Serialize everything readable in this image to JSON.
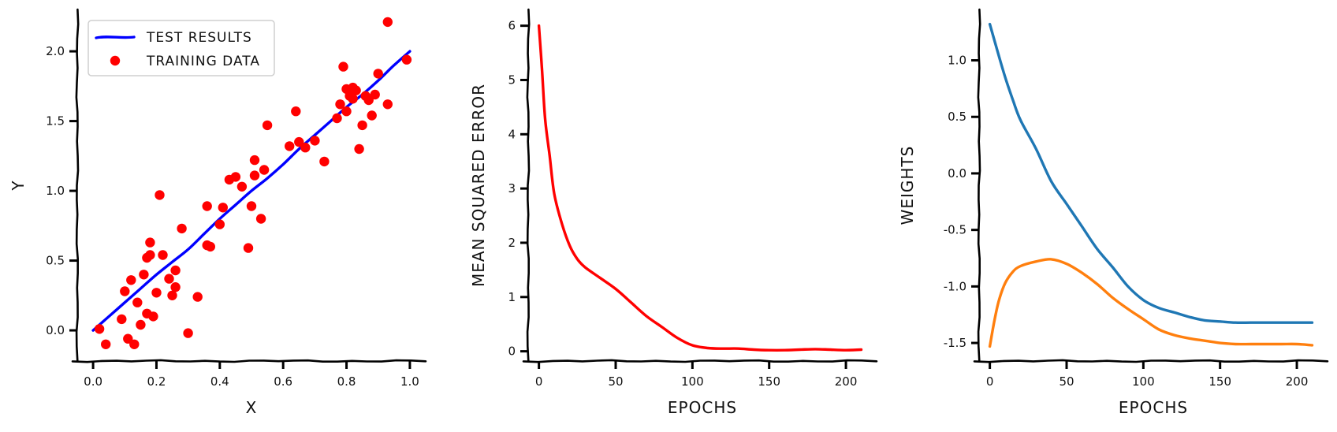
{
  "chart_data": [
    {
      "type": "scatter",
      "xlabel": "X",
      "ylabel": "Y",
      "xlim": [
        -0.05,
        1.05
      ],
      "ylim": [
        -0.22,
        2.3
      ],
      "xticks": [
        0.0,
        0.2,
        0.4,
        0.6,
        0.8,
        1.0
      ],
      "xtick_labels": [
        "0.0",
        "0.2",
        "0.4",
        "0.6",
        "0.8",
        "1.0"
      ],
      "yticks": [
        0.0,
        0.5,
        1.0,
        1.5,
        2.0
      ],
      "ytick_labels": [
        "0.0",
        "0.5",
        "1.0",
        "1.5",
        "2.0"
      ],
      "legend_position": "top-left",
      "series": [
        {
          "name": "TEST RESULTS",
          "kind": "line",
          "color": "#0000ff",
          "x": [
            0.0,
            0.05,
            0.1,
            0.15,
            0.2,
            0.25,
            0.3,
            0.35,
            0.4,
            0.45,
            0.5,
            0.55,
            0.6,
            0.65,
            0.7,
            0.75,
            0.8,
            0.85,
            0.9,
            0.95,
            1.0
          ],
          "y": [
            0.0,
            0.1,
            0.2,
            0.3,
            0.4,
            0.49,
            0.58,
            0.69,
            0.8,
            0.9,
            1.0,
            1.09,
            1.19,
            1.3,
            1.4,
            1.5,
            1.6,
            1.69,
            1.79,
            1.9,
            2.0
          ]
        },
        {
          "name": "TRAINING DATA",
          "kind": "scatter",
          "color": "#ff0000",
          "x": [
            0.02,
            0.04,
            0.09,
            0.1,
            0.11,
            0.12,
            0.13,
            0.14,
            0.15,
            0.16,
            0.17,
            0.17,
            0.18,
            0.18,
            0.19,
            0.2,
            0.21,
            0.22,
            0.24,
            0.25,
            0.26,
            0.26,
            0.28,
            0.3,
            0.33,
            0.36,
            0.36,
            0.37,
            0.4,
            0.41,
            0.43,
            0.45,
            0.47,
            0.49,
            0.5,
            0.51,
            0.51,
            0.53,
            0.54,
            0.55,
            0.62,
            0.64,
            0.65,
            0.67,
            0.7,
            0.73,
            0.77,
            0.78,
            0.79,
            0.8,
            0.8,
            0.81,
            0.82,
            0.82,
            0.83,
            0.84,
            0.85,
            0.86,
            0.87,
            0.88,
            0.89,
            0.9,
            0.93,
            0.93,
            0.99
          ],
          "y": [
            0.01,
            -0.1,
            0.08,
            0.28,
            -0.06,
            0.36,
            -0.1,
            0.2,
            0.04,
            0.4,
            0.52,
            0.12,
            0.63,
            0.54,
            0.1,
            0.27,
            0.97,
            0.54,
            0.37,
            0.25,
            0.31,
            0.43,
            0.73,
            -0.02,
            0.24,
            0.89,
            0.61,
            0.6,
            0.76,
            0.88,
            1.08,
            1.1,
            1.03,
            0.59,
            0.89,
            1.11,
            1.22,
            0.8,
            1.15,
            1.47,
            1.32,
            1.57,
            1.35,
            1.31,
            1.36,
            1.21,
            1.52,
            1.62,
            1.89,
            1.73,
            1.57,
            1.68,
            1.66,
            1.74,
            1.72,
            1.3,
            1.47,
            1.68,
            1.65,
            1.54,
            1.69,
            1.84,
            1.62,
            2.21,
            1.94
          ]
        }
      ]
    },
    {
      "type": "line",
      "xlabel": "EPOCHS",
      "ylabel": "MEAN SQUARED ERROR",
      "xlim": [
        -7,
        220
      ],
      "ylim": [
        -0.18,
        6.3
      ],
      "xticks": [
        0,
        50,
        100,
        150,
        200
      ],
      "xtick_labels": [
        "0",
        "50",
        "100",
        "150",
        "200"
      ],
      "yticks": [
        0,
        1,
        2,
        3,
        4,
        5,
        6
      ],
      "ytick_labels": [
        "0",
        "1",
        "2",
        "3",
        "4",
        "5",
        "6"
      ],
      "series": [
        {
          "color": "#ff0000",
          "x": [
            0,
            2,
            4,
            7,
            10,
            15,
            20,
            25,
            30,
            40,
            50,
            60,
            70,
            80,
            90,
            100,
            110,
            120,
            130,
            140,
            150,
            160,
            170,
            180,
            190,
            200,
            210
          ],
          "y": [
            6.0,
            5.2,
            4.3,
            3.6,
            2.9,
            2.35,
            1.95,
            1.7,
            1.55,
            1.35,
            1.15,
            0.9,
            0.65,
            0.45,
            0.25,
            0.11,
            0.06,
            0.05,
            0.05,
            0.03,
            0.02,
            0.02,
            0.03,
            0.04,
            0.03,
            0.02,
            0.03
          ]
        }
      ]
    },
    {
      "type": "line",
      "xlabel": "EPOCHS",
      "ylabel": "WEIGHTS",
      "xlim": [
        -7,
        220
      ],
      "ylim": [
        -1.66,
        1.45
      ],
      "xticks": [
        0,
        50,
        100,
        150,
        200
      ],
      "xtick_labels": [
        "0",
        "50",
        "100",
        "150",
        "200"
      ],
      "yticks": [
        1.0,
        0.5,
        0.0,
        -0.5,
        -1.0,
        -1.5
      ],
      "ytick_labels": [
        "1.0",
        "0.5",
        "0.0",
        "-0.5",
        "-1.0",
        "-1.5"
      ],
      "series": [
        {
          "color": "#1f77b4",
          "x": [
            0,
            5,
            10,
            15,
            20,
            30,
            40,
            50,
            60,
            70,
            80,
            90,
            100,
            110,
            120,
            130,
            140,
            150,
            160,
            170,
            180,
            190,
            200,
            210
          ],
          "y": [
            1.32,
            1.08,
            0.85,
            0.65,
            0.47,
            0.22,
            -0.07,
            -0.27,
            -0.47,
            -0.67,
            -0.83,
            -1.0,
            -1.12,
            -1.19,
            -1.23,
            -1.27,
            -1.3,
            -1.31,
            -1.32,
            -1.32,
            -1.32,
            -1.32,
            -1.32,
            -1.32
          ]
        },
        {
          "color": "#ff7f0e",
          "x": [
            0,
            3,
            6,
            10,
            15,
            20,
            30,
            40,
            50,
            60,
            70,
            80,
            90,
            100,
            110,
            120,
            130,
            140,
            150,
            160,
            170,
            180,
            190,
            200,
            210
          ],
          "y": [
            -1.53,
            -1.3,
            -1.12,
            -0.97,
            -0.87,
            -0.82,
            -0.78,
            -0.76,
            -0.8,
            -0.88,
            -0.98,
            -1.1,
            -1.2,
            -1.29,
            -1.38,
            -1.43,
            -1.46,
            -1.48,
            -1.5,
            -1.51,
            -1.51,
            -1.51,
            -1.51,
            -1.51,
            -1.52
          ]
        }
      ]
    }
  ]
}
